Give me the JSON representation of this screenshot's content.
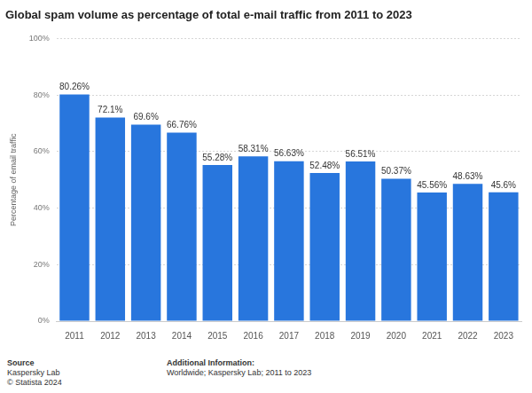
{
  "chart_data": {
    "type": "bar",
    "title": "Global spam volume as percentage of total e-mail traffic from 2011 to 2023",
    "y_label": "Percentage of email traffic",
    "categories": [
      "2011",
      "2012",
      "2013",
      "2014",
      "2015",
      "2016",
      "2017",
      "2018",
      "2019",
      "2020",
      "2021",
      "2022",
      "2023"
    ],
    "values": [
      80.26,
      72.1,
      69.6,
      66.76,
      55.28,
      58.31,
      56.63,
      52.48,
      56.51,
      50.37,
      45.56,
      48.63,
      45.6
    ],
    "value_labels": [
      "80.26%",
      "72.1%",
      "69.6%",
      "66.76%",
      "55.28%",
      "58.31%",
      "56.63%",
      "52.48%",
      "56.51%",
      "50.37%",
      "45.56%",
      "48.63%",
      "45.6%"
    ],
    "color": "#2876dd",
    "ylim": [
      0,
      100
    ],
    "yticks": [
      {
        "value": 0,
        "label": "0%"
      },
      {
        "value": 20,
        "label": "20%"
      },
      {
        "value": 40,
        "label": "40%"
      },
      {
        "value": 60,
        "label": "60%"
      },
      {
        "value": 80,
        "label": "80%"
      },
      {
        "value": 100,
        "label": "100%"
      }
    ],
    "grid": true,
    "data_labels": true
  },
  "footer": {
    "source_heading": "Source",
    "source_lines": [
      "Kaspersky Lab",
      "© Statista 2024"
    ],
    "info_heading": "Additional Information:",
    "info_lines": [
      "Worldwide; Kaspersky Lab; 2011 to 2023"
    ]
  }
}
